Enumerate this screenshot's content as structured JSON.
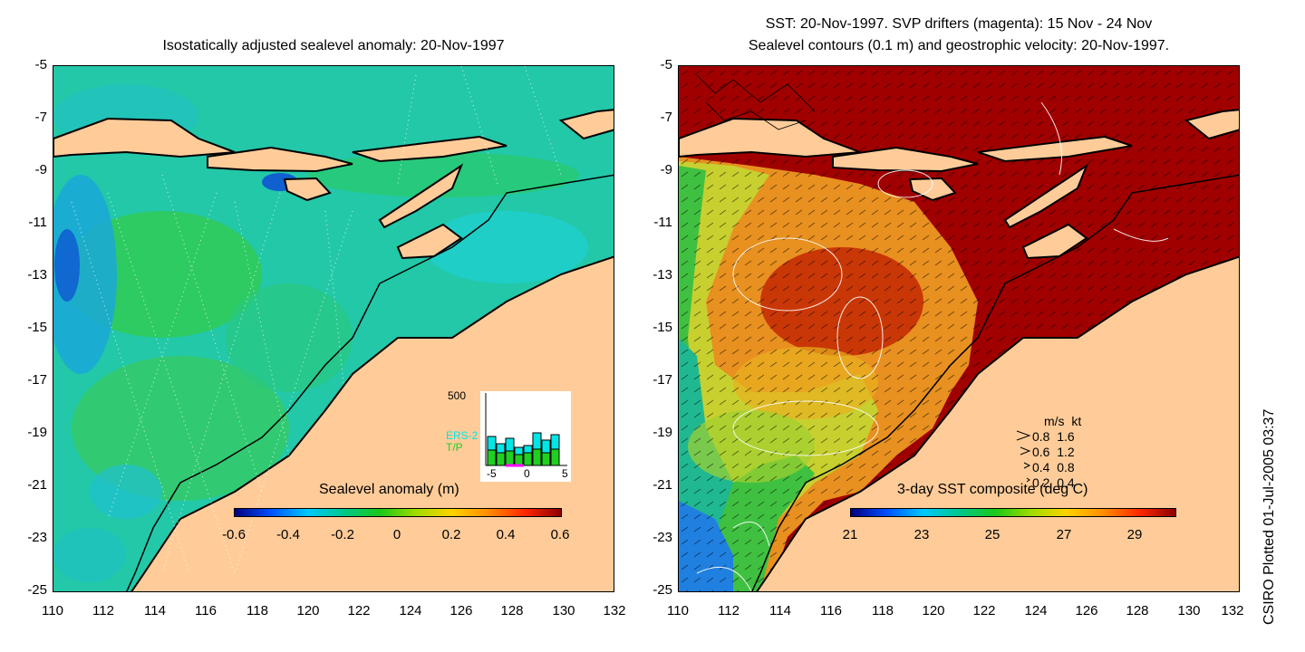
{
  "left_panel": {
    "title": "Isostatically adjusted sealevel anomaly: 20-Nov-1997",
    "colorbar": {
      "title": "Sealevel anomaly (m)",
      "ticks": [
        "-0.6",
        "-0.4",
        "-0.2",
        "0",
        "0.2",
        "0.4",
        "0.6"
      ],
      "colors": [
        "#00007f",
        "#0050ff",
        "#00c8ff",
        "#00c88c",
        "#19c819",
        "#a0dc00",
        "#ffd200",
        "#ff8c00",
        "#ff2800",
        "#8c0000"
      ]
    },
    "inset": {
      "ymax_label": "500",
      "legend": [
        "ERS-2",
        "T/P"
      ],
      "legend_colors": [
        "#00e6e6",
        "#20d020"
      ],
      "xticks": [
        "-5",
        "0",
        "5"
      ]
    }
  },
  "right_panel": {
    "title_line1": "SST: 20-Nov-1997. SVP drifters (magenta): 15 Nov - 24 Nov",
    "title_line2": "Sealevel contours (0.1 m) and geostrophic velocity: 20-Nov-1997.",
    "colorbar": {
      "title": "3-day SST composite (deg C)",
      "ticks": [
        "21",
        "23",
        "25",
        "27",
        "29"
      ],
      "colors": [
        "#00007f",
        "#0050ff",
        "#00c8ff",
        "#00c88c",
        "#19c819",
        "#a0dc00",
        "#ffd200",
        "#ff8c00",
        "#ff2800",
        "#8c0000"
      ]
    },
    "velocity_legend": {
      "header": "m/s  kt",
      "rows": [
        "0.8  1.6",
        "0.6  1.2",
        "0.4  0.8",
        "0.2  0.4"
      ]
    }
  },
  "axes": {
    "y_ticks": [
      "-5",
      "-7",
      "-9",
      "-11",
      "-13",
      "-15",
      "-17",
      "-19",
      "-21",
      "-23",
      "-25"
    ],
    "x_ticks": [
      "110",
      "112",
      "114",
      "116",
      "118",
      "120",
      "122",
      "124",
      "126",
      "128",
      "130",
      "132"
    ]
  },
  "credit": "CSIRO Plotted 01-Jul-2005 03:37",
  "colors": {
    "land": "#ffcc99",
    "ocean_left": "#19c8a0",
    "ocean_right_warm": "#a00000",
    "ocean_right_cool": "#80d020"
  }
}
